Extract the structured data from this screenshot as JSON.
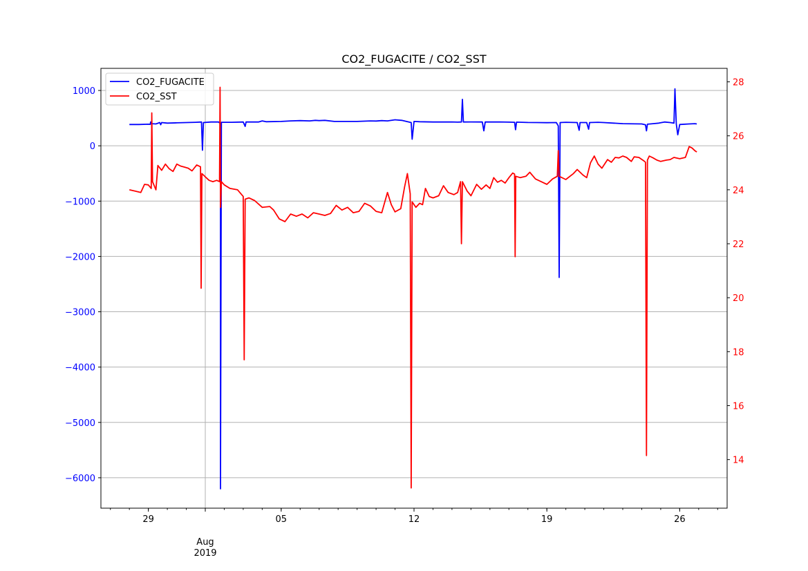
{
  "chart_data": {
    "type": "line",
    "title": "CO2_FUGACITE / CO2_SST",
    "xlabel": "",
    "x_ticks": [
      {
        "day": 29,
        "label": "29"
      },
      {
        "day": 32,
        "label": "Aug",
        "sublabel": "2019"
      },
      {
        "day": 36,
        "label": "05"
      },
      {
        "day": 43,
        "label": "12"
      },
      {
        "day": 50,
        "label": "19"
      },
      {
        "day": 57,
        "label": "26"
      }
    ],
    "xlim": [
      26.5,
      59.5
    ],
    "grid": true,
    "legend_position": "top-left",
    "y_left": {
      "label": "",
      "color": "#0000ff",
      "ylim": [
        -6550,
        1400
      ],
      "ticks": [
        1000,
        0,
        -1000,
        -2000,
        -3000,
        -4000,
        -5000,
        -6000
      ],
      "tick_labels": [
        "1000",
        "0",
        "−1000",
        "−2000",
        "−3000",
        "−4000",
        "−5000",
        "−6000"
      ]
    },
    "y_right": {
      "label": "",
      "color": "#ff0000",
      "ylim": [
        12.2,
        28.5
      ],
      "ticks": [
        28,
        26,
        24,
        22,
        20,
        18,
        16,
        14
      ],
      "tick_labels": [
        "28",
        "26",
        "24",
        "22",
        "20",
        "18",
        "16",
        "14"
      ]
    },
    "series": [
      {
        "name": "CO2_FUGACITE",
        "axis": "left",
        "color": "#0000ff",
        "points": [
          [
            28.0,
            385
          ],
          [
            28.5,
            385
          ],
          [
            29.0,
            390
          ],
          [
            29.1,
            388
          ],
          [
            29.12,
            430
          ],
          [
            29.16,
            400
          ],
          [
            29.4,
            395
          ],
          [
            29.6,
            420
          ],
          [
            29.65,
            380
          ],
          [
            29.7,
            420
          ],
          [
            30.0,
            410
          ],
          [
            30.5,
            415
          ],
          [
            31.0,
            420
          ],
          [
            31.5,
            425
          ],
          [
            31.8,
            430
          ],
          [
            31.85,
            -80
          ],
          [
            31.9,
            420
          ],
          [
            32.3,
            430
          ],
          [
            32.7,
            430
          ],
          [
            32.8,
            400
          ],
          [
            32.8,
            -6200
          ],
          [
            32.85,
            425
          ],
          [
            33.4,
            425
          ],
          [
            34.0,
            430
          ],
          [
            34.1,
            350
          ],
          [
            34.15,
            430
          ],
          [
            34.8,
            430
          ],
          [
            35.0,
            450
          ],
          [
            35.2,
            435
          ],
          [
            36.0,
            440
          ],
          [
            36.5,
            450
          ],
          [
            37.0,
            455
          ],
          [
            37.5,
            450
          ],
          [
            37.8,
            460
          ],
          [
            38.0,
            455
          ],
          [
            38.3,
            460
          ],
          [
            38.8,
            440
          ],
          [
            39.5,
            440
          ],
          [
            40.0,
            440
          ],
          [
            40.7,
            450
          ],
          [
            41.0,
            448
          ],
          [
            41.3,
            455
          ],
          [
            41.6,
            450
          ],
          [
            42.0,
            470
          ],
          [
            42.35,
            460
          ],
          [
            42.6,
            440
          ],
          [
            42.85,
            420
          ],
          [
            42.9,
            120
          ],
          [
            43.0,
            440
          ],
          [
            43.3,
            435
          ],
          [
            44.0,
            430
          ],
          [
            45.0,
            432
          ],
          [
            45.3,
            428
          ],
          [
            45.5,
            430
          ],
          [
            45.55,
            840
          ],
          [
            45.6,
            430
          ],
          [
            46.0,
            432
          ],
          [
            46.6,
            430
          ],
          [
            46.68,
            270
          ],
          [
            46.75,
            430
          ],
          [
            47.5,
            432
          ],
          [
            48.0,
            428
          ],
          [
            48.3,
            425
          ],
          [
            48.35,
            290
          ],
          [
            48.4,
            428
          ],
          [
            49.0,
            422
          ],
          [
            49.5,
            420
          ],
          [
            50.0,
            418
          ],
          [
            50.5,
            420
          ],
          [
            50.6,
            360
          ],
          [
            50.65,
            -2380
          ],
          [
            50.7,
            420
          ],
          [
            51.0,
            425
          ],
          [
            51.6,
            420
          ],
          [
            51.7,
            280
          ],
          [
            51.75,
            420
          ],
          [
            52.1,
            420
          ],
          [
            52.2,
            300
          ],
          [
            52.25,
            420
          ],
          [
            52.7,
            425
          ],
          [
            53.0,
            420
          ],
          [
            53.5,
            410
          ],
          [
            54.0,
            400
          ],
          [
            55.0,
            395
          ],
          [
            55.2,
            380
          ],
          [
            55.25,
            270
          ],
          [
            55.3,
            390
          ],
          [
            55.6,
            400
          ],
          [
            55.9,
            410
          ],
          [
            56.2,
            430
          ],
          [
            56.5,
            420
          ],
          [
            56.7,
            410
          ],
          [
            56.75,
            1030
          ],
          [
            56.82,
            400
          ],
          [
            56.9,
            200
          ],
          [
            57.0,
            385
          ],
          [
            57.5,
            395
          ],
          [
            57.8,
            400
          ],
          [
            57.9,
            395
          ]
        ]
      },
      {
        "name": "CO2_SST",
        "axis": "right",
        "color": "#ff0000",
        "points": [
          [
            28.0,
            24.0
          ],
          [
            28.3,
            23.95
          ],
          [
            28.6,
            23.9
          ],
          [
            28.8,
            24.2
          ],
          [
            29.0,
            24.18
          ],
          [
            29.15,
            24.05
          ],
          [
            29.18,
            26.85
          ],
          [
            29.22,
            24.3
          ],
          [
            29.4,
            24.0
          ],
          [
            29.5,
            24.9
          ],
          [
            29.7,
            24.72
          ],
          [
            29.9,
            24.95
          ],
          [
            30.1,
            24.78
          ],
          [
            30.3,
            24.68
          ],
          [
            30.5,
            24.95
          ],
          [
            30.7,
            24.88
          ],
          [
            30.9,
            24.84
          ],
          [
            31.1,
            24.8
          ],
          [
            31.3,
            24.7
          ],
          [
            31.55,
            24.92
          ],
          [
            31.75,
            24.85
          ],
          [
            31.78,
            20.35
          ],
          [
            31.82,
            24.6
          ],
          [
            32.0,
            24.48
          ],
          [
            32.2,
            24.35
          ],
          [
            32.4,
            24.3
          ],
          [
            32.6,
            24.35
          ],
          [
            32.75,
            24.3
          ],
          [
            32.78,
            27.8
          ],
          [
            32.8,
            23.35
          ],
          [
            32.85,
            24.3
          ],
          [
            33.0,
            24.18
          ],
          [
            33.3,
            24.05
          ],
          [
            33.7,
            24.0
          ],
          [
            34.0,
            23.75
          ],
          [
            34.05,
            17.7
          ],
          [
            34.1,
            23.65
          ],
          [
            34.3,
            23.7
          ],
          [
            34.6,
            23.6
          ],
          [
            35.0,
            23.35
          ],
          [
            35.4,
            23.38
          ],
          [
            35.6,
            23.25
          ],
          [
            35.9,
            22.92
          ],
          [
            36.2,
            22.82
          ],
          [
            36.5,
            23.1
          ],
          [
            36.8,
            23.02
          ],
          [
            37.1,
            23.1
          ],
          [
            37.4,
            22.96
          ],
          [
            37.7,
            23.15
          ],
          [
            38.0,
            23.1
          ],
          [
            38.3,
            23.05
          ],
          [
            38.6,
            23.12
          ],
          [
            38.9,
            23.42
          ],
          [
            39.2,
            23.25
          ],
          [
            39.5,
            23.35
          ],
          [
            39.8,
            23.15
          ],
          [
            40.1,
            23.2
          ],
          [
            40.4,
            23.5
          ],
          [
            40.7,
            23.4
          ],
          [
            41.0,
            23.2
          ],
          [
            41.3,
            23.15
          ],
          [
            41.6,
            23.9
          ],
          [
            41.8,
            23.45
          ],
          [
            42.0,
            23.18
          ],
          [
            42.3,
            23.3
          ],
          [
            42.5,
            24.1
          ],
          [
            42.65,
            24.6
          ],
          [
            42.8,
            23.85
          ],
          [
            42.85,
            12.95
          ],
          [
            42.9,
            23.55
          ],
          [
            43.1,
            23.35
          ],
          [
            43.3,
            23.5
          ],
          [
            43.45,
            23.45
          ],
          [
            43.6,
            24.05
          ],
          [
            43.8,
            23.75
          ],
          [
            44.0,
            23.7
          ],
          [
            44.3,
            23.78
          ],
          [
            44.55,
            24.15
          ],
          [
            44.8,
            23.9
          ],
          [
            45.1,
            23.82
          ],
          [
            45.3,
            23.9
          ],
          [
            45.45,
            24.3
          ],
          [
            45.5,
            22.0
          ],
          [
            45.55,
            24.3
          ],
          [
            45.8,
            23.95
          ],
          [
            46.0,
            23.78
          ],
          [
            46.3,
            24.2
          ],
          [
            46.55,
            24.02
          ],
          [
            46.8,
            24.18
          ],
          [
            47.0,
            24.05
          ],
          [
            47.2,
            24.45
          ],
          [
            47.4,
            24.28
          ],
          [
            47.6,
            24.35
          ],
          [
            47.8,
            24.25
          ],
          [
            48.0,
            24.45
          ],
          [
            48.2,
            24.62
          ],
          [
            48.3,
            24.58
          ],
          [
            48.33,
            21.52
          ],
          [
            48.36,
            24.5
          ],
          [
            48.6,
            24.45
          ],
          [
            48.9,
            24.5
          ],
          [
            49.1,
            24.65
          ],
          [
            49.4,
            24.4
          ],
          [
            49.7,
            24.3
          ],
          [
            50.0,
            24.2
          ],
          [
            50.3,
            24.4
          ],
          [
            50.55,
            24.5
          ],
          [
            50.6,
            25.45
          ],
          [
            50.65,
            24.5
          ],
          [
            50.8,
            24.45
          ],
          [
            51.0,
            24.38
          ],
          [
            51.4,
            24.6
          ],
          [
            51.6,
            24.75
          ],
          [
            51.9,
            24.55
          ],
          [
            52.1,
            24.45
          ],
          [
            52.3,
            25.0
          ],
          [
            52.5,
            25.25
          ],
          [
            52.7,
            24.95
          ],
          [
            52.9,
            24.8
          ],
          [
            53.2,
            25.12
          ],
          [
            53.4,
            25.02
          ],
          [
            53.6,
            25.2
          ],
          [
            53.8,
            25.18
          ],
          [
            54.0,
            25.25
          ],
          [
            54.2,
            25.2
          ],
          [
            54.45,
            25.05
          ],
          [
            54.6,
            25.22
          ],
          [
            54.85,
            25.2
          ],
          [
            55.1,
            25.08
          ],
          [
            55.2,
            25.02
          ],
          [
            55.25,
            14.15
          ],
          [
            55.3,
            25.1
          ],
          [
            55.4,
            25.25
          ],
          [
            55.6,
            25.18
          ],
          [
            55.8,
            25.1
          ],
          [
            56.0,
            25.05
          ],
          [
            56.3,
            25.1
          ],
          [
            56.5,
            25.12
          ],
          [
            56.7,
            25.2
          ],
          [
            57.0,
            25.15
          ],
          [
            57.3,
            25.2
          ],
          [
            57.5,
            25.6
          ],
          [
            57.65,
            25.55
          ],
          [
            57.8,
            25.45
          ],
          [
            57.9,
            25.4
          ]
        ]
      }
    ]
  }
}
